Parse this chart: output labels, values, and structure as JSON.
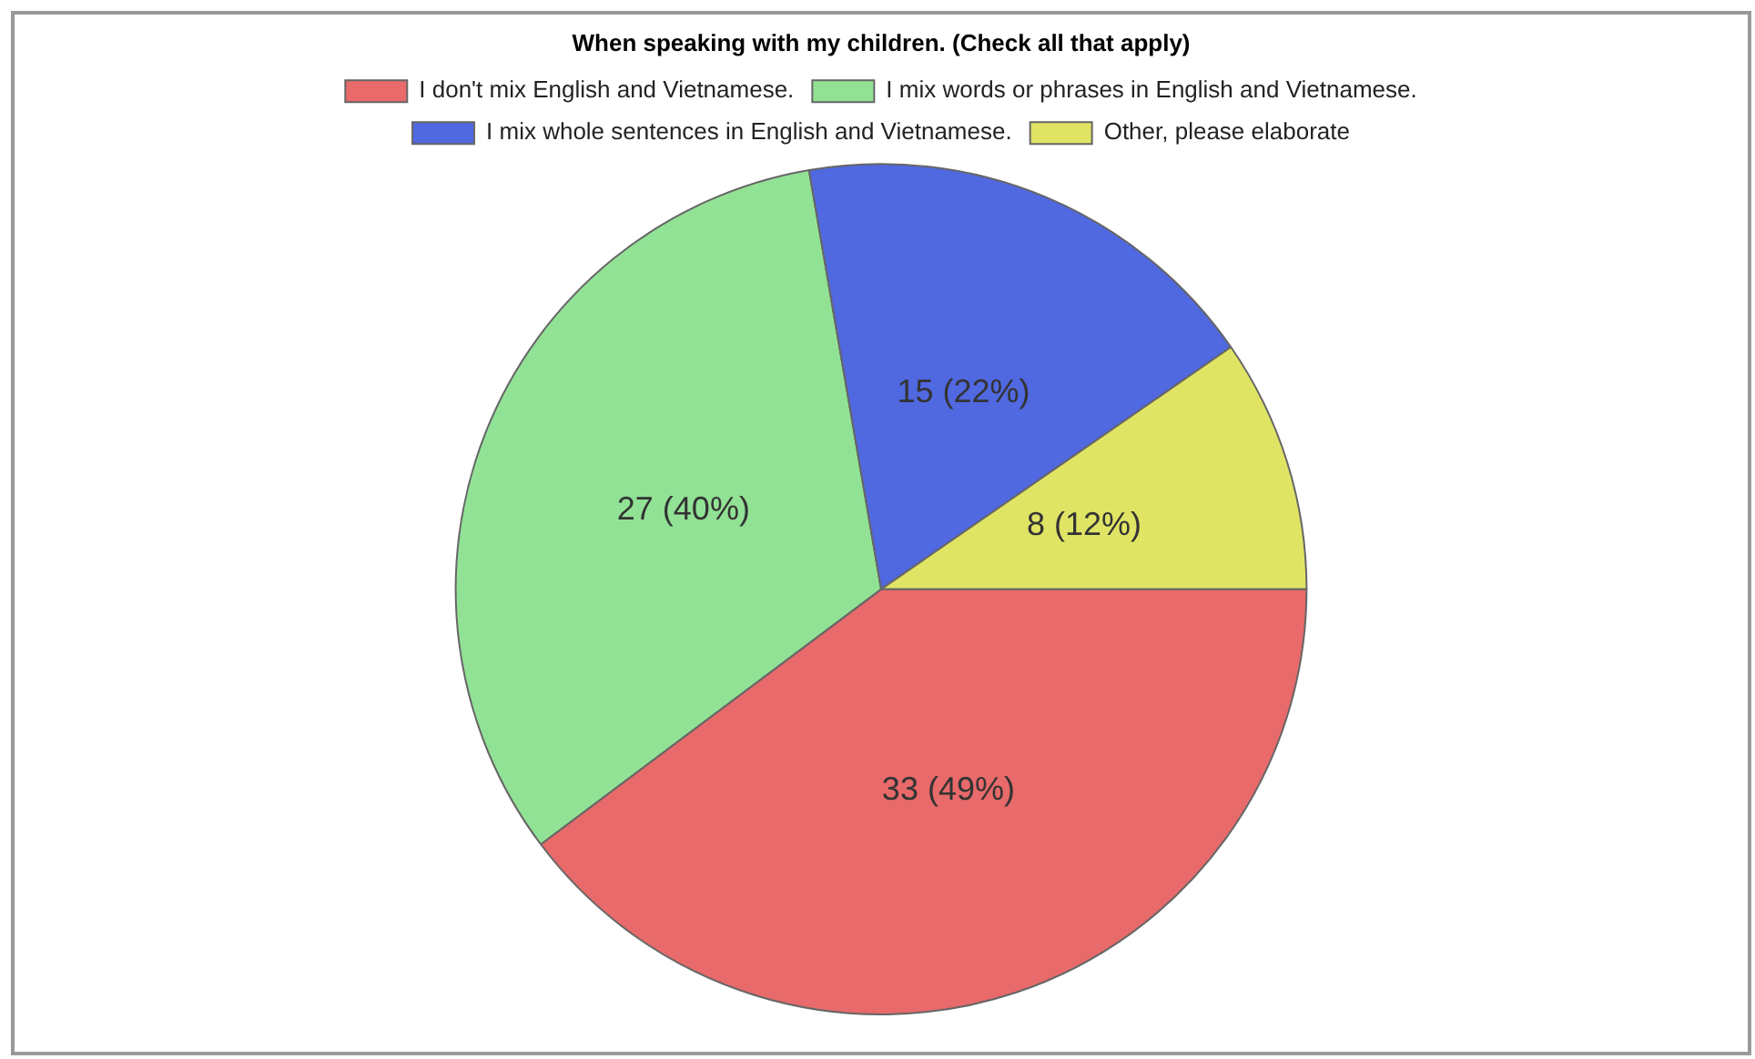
{
  "chart_data": {
    "type": "pie",
    "legend_title": "When speaking with my children. (Check all that apply)",
    "categories": [
      "I don't mix English and Vietnamese.",
      "I mix words or phrases in English and Vietnamese.",
      "I mix whole sentences in English and Vietnamese.",
      "Other, please elaborate"
    ],
    "values": [
      33,
      27,
      15,
      8
    ],
    "colors": [
      "#e86a6a",
      "#92e296",
      "#5068e0",
      "#e0e464"
    ],
    "value_labels": [
      "33 (49%)",
      "27 (40%)",
      "15 (22%)",
      "8 (12%)"
    ],
    "legend": "top"
  }
}
